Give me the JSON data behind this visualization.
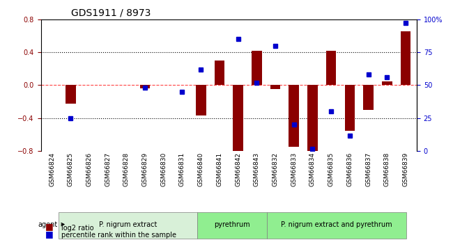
{
  "title": "GDS1911 / 8973",
  "samples": [
    "GSM66824",
    "GSM66825",
    "GSM66826",
    "GSM66827",
    "GSM66828",
    "GSM66829",
    "GSM66830",
    "GSM66831",
    "GSM66840",
    "GSM66841",
    "GSM66842",
    "GSM66843",
    "GSM66832",
    "GSM66833",
    "GSM66834",
    "GSM66835",
    "GSM66836",
    "GSM66837",
    "GSM66838",
    "GSM66839"
  ],
  "log2_ratio": [
    0.0,
    -0.22,
    0.0,
    0.0,
    0.0,
    -0.04,
    0.0,
    0.0,
    -0.37,
    0.3,
    -0.8,
    0.42,
    -0.05,
    -0.75,
    -0.8,
    0.42,
    -0.55,
    -0.3,
    0.05,
    0.65
  ],
  "percentile": [
    null,
    25,
    null,
    null,
    null,
    48,
    null,
    45,
    62,
    null,
    85,
    52,
    80,
    20,
    2,
    30,
    12,
    58,
    56,
    97
  ],
  "groups": [
    {
      "label": "P. nigrum extract",
      "start": 0,
      "end": 7,
      "color": "#c8f0c8"
    },
    {
      "label": "pyrethrum",
      "start": 8,
      "end": 11,
      "color": "#90ee90"
    },
    {
      "label": "P. nigrum extract and pyrethrum",
      "start": 12,
      "end": 19,
      "color": "#90ee90"
    }
  ],
  "ylim": [
    -0.8,
    0.8
  ],
  "right_ylim": [
    0,
    100
  ],
  "bar_color": "#8b0000",
  "dot_color": "#0000cd",
  "zero_line_color": "#ff4444",
  "grid_color": "#000000",
  "background_color": "#ffffff"
}
